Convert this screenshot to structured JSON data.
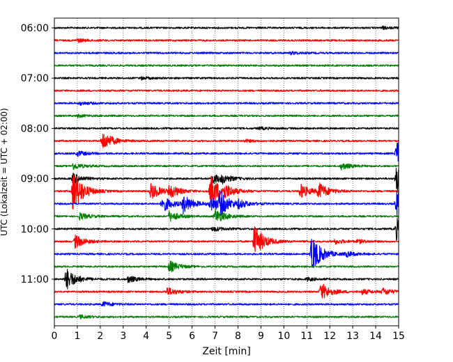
{
  "chart_data": {
    "type": "line",
    "chart_kind": "helicorder",
    "xlabel": "Zeit  [min]",
    "ylabel": "UTC (Lokalzeit = UTC + 02:00)",
    "xlim": [
      0,
      15
    ],
    "x_ticks": [
      "0",
      "1",
      "2",
      "3",
      "4",
      "5",
      "6",
      "7",
      "8",
      "9",
      "10",
      "11",
      "12",
      "13",
      "14",
      "15"
    ],
    "y_tick_labels": [
      "06:00",
      "07:00",
      "08:00",
      "09:00",
      "10:00",
      "11:00"
    ],
    "grid": "vertical dotted at each minute",
    "trace_interval_minutes": 15,
    "trace_colors": [
      "#000000",
      "#ff0000",
      "#0000ff",
      "#008000"
    ],
    "traces": [
      {
        "start": "06:00",
        "color": "#000000",
        "events": [
          {
            "t": 14.3,
            "amp": 0.15
          }
        ]
      },
      {
        "start": "06:15",
        "color": "#ff0000",
        "events": [
          {
            "t": 1.0,
            "amp": 0.2
          }
        ]
      },
      {
        "start": "06:30",
        "color": "#0000ff",
        "events": [
          {
            "t": 10.3,
            "amp": 0.15
          }
        ]
      },
      {
        "start": "06:45",
        "color": "#008000",
        "events": []
      },
      {
        "start": "07:00",
        "color": "#000000",
        "events": [
          {
            "t": 3.8,
            "amp": 0.15
          }
        ]
      },
      {
        "start": "07:15",
        "color": "#ff0000",
        "events": []
      },
      {
        "start": "07:30",
        "color": "#0000ff",
        "events": [
          {
            "t": 1.1,
            "amp": 0.2
          }
        ]
      },
      {
        "start": "07:45",
        "color": "#008000",
        "events": [
          {
            "t": 1.0,
            "amp": 0.15
          }
        ]
      },
      {
        "start": "08:00",
        "color": "#000000",
        "events": [
          {
            "t": 8.9,
            "amp": 0.15
          }
        ]
      },
      {
        "start": "08:15",
        "color": "#ff0000",
        "events": [
          {
            "t": 2.1,
            "amp": 1.2
          },
          {
            "t": 8.3,
            "amp": 0.15
          }
        ]
      },
      {
        "start": "08:30",
        "color": "#0000ff",
        "events": [
          {
            "t": 1.0,
            "amp": 0.3
          },
          {
            "t": 14.9,
            "amp": 1.5
          }
        ]
      },
      {
        "start": "08:45",
        "color": "#008000",
        "events": [
          {
            "t": 0.8,
            "amp": 0.4
          },
          {
            "t": 12.5,
            "amp": 0.4
          }
        ]
      },
      {
        "start": "09:00",
        "color": "#000000",
        "events": [
          {
            "t": 0.8,
            "amp": 0.6
          },
          {
            "t": 6.9,
            "amp": 0.6
          },
          {
            "t": 7.3,
            "amp": 0.4
          },
          {
            "t": 14.9,
            "amp": 1.8
          }
        ]
      },
      {
        "start": "09:15",
        "color": "#ff0000",
        "events": [
          {
            "t": 0.8,
            "amp": 2.8
          },
          {
            "t": 4.2,
            "amp": 1.0
          },
          {
            "t": 5.0,
            "amp": 0.8
          },
          {
            "t": 6.8,
            "amp": 2.0
          },
          {
            "t": 7.4,
            "amp": 0.6
          },
          {
            "t": 10.7,
            "amp": 0.9
          },
          {
            "t": 11.5,
            "amp": 1.0
          }
        ]
      },
      {
        "start": "09:30",
        "color": "#0000ff",
        "events": [
          {
            "t": 4.7,
            "amp": 1.0
          },
          {
            "t": 5.6,
            "amp": 1.1
          },
          {
            "t": 6.8,
            "amp": 1.0
          },
          {
            "t": 7.2,
            "amp": 1.3
          },
          {
            "t": 8.0,
            "amp": 0.4
          },
          {
            "t": 14.9,
            "amp": 1.6
          }
        ]
      },
      {
        "start": "09:45",
        "color": "#008000",
        "events": [
          {
            "t": 1.1,
            "amp": 0.4
          },
          {
            "t": 5.0,
            "amp": 0.6
          },
          {
            "t": 7.0,
            "amp": 0.9
          }
        ]
      },
      {
        "start": "10:00",
        "color": "#000000",
        "events": [
          {
            "t": 6.9,
            "amp": 0.3
          },
          {
            "t": 14.9,
            "amp": 1.3
          }
        ]
      },
      {
        "start": "10:15",
        "color": "#ff0000",
        "events": [
          {
            "t": 0.9,
            "amp": 0.8
          },
          {
            "t": 8.7,
            "amp": 2.0
          },
          {
            "t": 12.2,
            "amp": 0.3
          },
          {
            "t": 13.2,
            "amp": 0.2
          }
        ]
      },
      {
        "start": "10:30",
        "color": "#0000ff",
        "events": [
          {
            "t": 11.2,
            "amp": 2.3
          },
          {
            "t": 12.7,
            "amp": 0.3
          }
        ]
      },
      {
        "start": "10:45",
        "color": "#008000",
        "events": [
          {
            "t": 5.0,
            "amp": 0.7
          }
        ]
      },
      {
        "start": "11:00",
        "color": "#000000",
        "events": [
          {
            "t": 0.5,
            "amp": 1.4
          },
          {
            "t": 3.2,
            "amp": 0.4
          },
          {
            "t": 11.0,
            "amp": 0.2
          }
        ]
      },
      {
        "start": "11:15",
        "color": "#ff0000",
        "events": [
          {
            "t": 4.9,
            "amp": 0.5
          },
          {
            "t": 11.6,
            "amp": 1.1
          },
          {
            "t": 13.4,
            "amp": 0.3
          },
          {
            "t": 14.3,
            "amp": 0.4
          }
        ]
      },
      {
        "start": "11:30",
        "color": "#0000ff",
        "events": [
          {
            "t": 2.1,
            "amp": 0.3
          }
        ]
      },
      {
        "start": "11:45",
        "color": "#008000",
        "events": [
          {
            "t": 1.1,
            "amp": 0.2
          }
        ]
      }
    ]
  }
}
